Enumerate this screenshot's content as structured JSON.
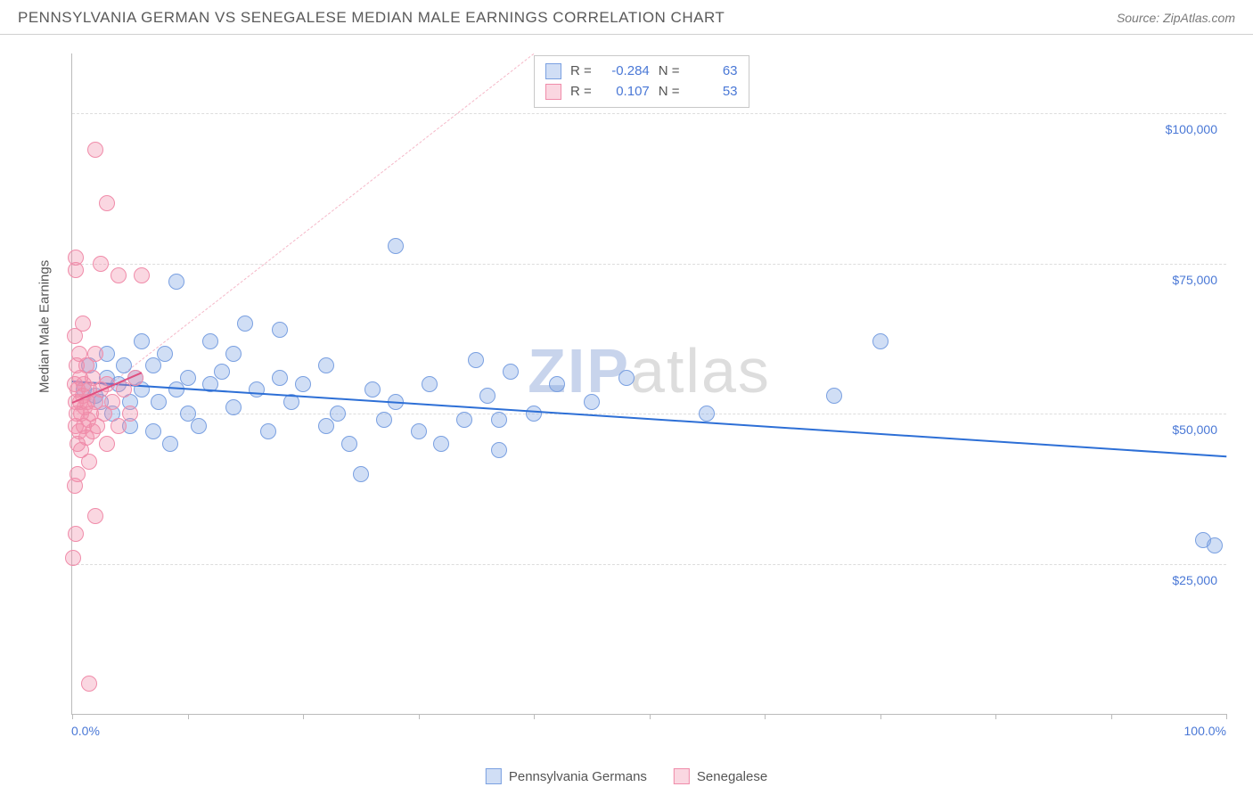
{
  "header": {
    "title": "PENNSYLVANIA GERMAN VS SENEGALESE MEDIAN MALE EARNINGS CORRELATION CHART",
    "source": "Source: ZipAtlas.com"
  },
  "chart": {
    "type": "scatter",
    "ylabel": "Median Male Earnings",
    "xlim": [
      0,
      100
    ],
    "ylim": [
      0,
      110000
    ],
    "x_tick_positions": [
      0,
      10,
      20,
      30,
      40,
      50,
      60,
      70,
      80,
      90,
      100
    ],
    "x_tick_labels_shown": {
      "min": "0.0%",
      "max": "100.0%"
    },
    "y_gridlines": [
      25000,
      50000,
      75000,
      100000
    ],
    "y_tick_labels": [
      "$25,000",
      "$50,000",
      "$75,000",
      "$100,000"
    ],
    "background_color": "#ffffff",
    "grid_color": "#dddddd",
    "axis_color": "#bbbbbb",
    "label_color": "#4a78d6",
    "marker_radius": 9,
    "marker_border_width": 1.5,
    "series": [
      {
        "name": "Pennsylvania Germans",
        "fill": "rgba(120,160,225,0.35)",
        "stroke": "#7aa0e1",
        "trend": {
          "x1": 0,
          "y1": 55500,
          "x2": 100,
          "y2": 43000,
          "color": "#2d6fd6",
          "width": 2
        },
        "R": -0.284,
        "N": 63,
        "points": [
          [
            1,
            54000
          ],
          [
            1.5,
            58000
          ],
          [
            2,
            53000
          ],
          [
            2.5,
            52000
          ],
          [
            3,
            56000
          ],
          [
            3,
            60000
          ],
          [
            3.5,
            50000
          ],
          [
            4,
            55000
          ],
          [
            4.5,
            58000
          ],
          [
            5,
            52000
          ],
          [
            5,
            48000
          ],
          [
            5.5,
            56000
          ],
          [
            6,
            54000
          ],
          [
            6,
            62000
          ],
          [
            7,
            47000
          ],
          [
            7,
            58000
          ],
          [
            7.5,
            52000
          ],
          [
            8,
            60000
          ],
          [
            8.5,
            45000
          ],
          [
            9,
            54000
          ],
          [
            9,
            72000
          ],
          [
            10,
            56000
          ],
          [
            10,
            50000
          ],
          [
            11,
            48000
          ],
          [
            12,
            55000
          ],
          [
            12,
            62000
          ],
          [
            13,
            57000
          ],
          [
            14,
            60000
          ],
          [
            14,
            51000
          ],
          [
            15,
            65000
          ],
          [
            16,
            54000
          ],
          [
            17,
            47000
          ],
          [
            18,
            56000
          ],
          [
            18,
            64000
          ],
          [
            19,
            52000
          ],
          [
            20,
            55000
          ],
          [
            22,
            48000
          ],
          [
            22,
            58000
          ],
          [
            23,
            50000
          ],
          [
            24,
            45000
          ],
          [
            25,
            40000
          ],
          [
            26,
            54000
          ],
          [
            27,
            49000
          ],
          [
            28,
            52000
          ],
          [
            28,
            78000
          ],
          [
            30,
            47000
          ],
          [
            31,
            55000
          ],
          [
            32,
            45000
          ],
          [
            34,
            49000
          ],
          [
            35,
            59000
          ],
          [
            36,
            53000
          ],
          [
            37,
            49000
          ],
          [
            37,
            44000
          ],
          [
            38,
            57000
          ],
          [
            40,
            50000
          ],
          [
            42,
            55000
          ],
          [
            45,
            52000
          ],
          [
            48,
            56000
          ],
          [
            55,
            50000
          ],
          [
            66,
            53000
          ],
          [
            70,
            62000
          ],
          [
            98,
            29000
          ],
          [
            99,
            28000
          ]
        ]
      },
      {
        "name": "Senegalese",
        "fill": "rgba(240,140,170,0.35)",
        "stroke": "#f08caa",
        "trend": {
          "x1": 0,
          "y1": 52000,
          "x2": 6,
          "y2": 57000,
          "color": "#e05080",
          "width": 2
        },
        "dashed_ref": {
          "x1": 0,
          "y1": 50000,
          "x2": 40,
          "y2": 110000,
          "color": "#f5b8c8"
        },
        "R": 0.107,
        "N": 53,
        "points": [
          [
            0.2,
            55000
          ],
          [
            0.3,
            52000
          ],
          [
            0.3,
            48000
          ],
          [
            0.4,
            50000
          ],
          [
            0.4,
            58000
          ],
          [
            0.5,
            45000
          ],
          [
            0.5,
            54000
          ],
          [
            0.6,
            60000
          ],
          [
            0.6,
            47000
          ],
          [
            0.7,
            52000
          ],
          [
            0.7,
            56000
          ],
          [
            0.8,
            50000
          ],
          [
            0.8,
            44000
          ],
          [
            0.9,
            53000
          ],
          [
            0.9,
            65000
          ],
          [
            1,
            48000
          ],
          [
            1,
            55000
          ],
          [
            1.1,
            51000
          ],
          [
            1.2,
            46000
          ],
          [
            1.2,
            58000
          ],
          [
            1.3,
            52000
          ],
          [
            1.4,
            49000
          ],
          [
            1.5,
            54000
          ],
          [
            1.5,
            42000
          ],
          [
            1.6,
            50000
          ],
          [
            1.8,
            56000
          ],
          [
            1.8,
            47000
          ],
          [
            2,
            52000
          ],
          [
            2,
            60000
          ],
          [
            2.2,
            48000
          ],
          [
            2.5,
            54000
          ],
          [
            2.5,
            75000
          ],
          [
            2.8,
            50000
          ],
          [
            3,
            55000
          ],
          [
            3,
            45000
          ],
          [
            3.5,
            52000
          ],
          [
            4,
            73000
          ],
          [
            4,
            48000
          ],
          [
            4.5,
            54000
          ],
          [
            5,
            50000
          ],
          [
            5.5,
            56000
          ],
          [
            6,
            73000
          ],
          [
            0.3,
            74000
          ],
          [
            0.3,
            76000
          ],
          [
            2,
            94000
          ],
          [
            3,
            85000
          ],
          [
            0.5,
            40000
          ],
          [
            0.2,
            38000
          ],
          [
            2,
            33000
          ],
          [
            0.3,
            30000
          ],
          [
            0.1,
            26000
          ],
          [
            1.5,
            5000
          ],
          [
            0.2,
            63000
          ]
        ]
      }
    ],
    "legend": {
      "series1_label": "Pennsylvania Germans",
      "series2_label": "Senegalese"
    },
    "stats_box": {
      "r_label": "R =",
      "n_label": "N ="
    },
    "watermark": {
      "part1": "ZIP",
      "part2": "atlas"
    }
  }
}
